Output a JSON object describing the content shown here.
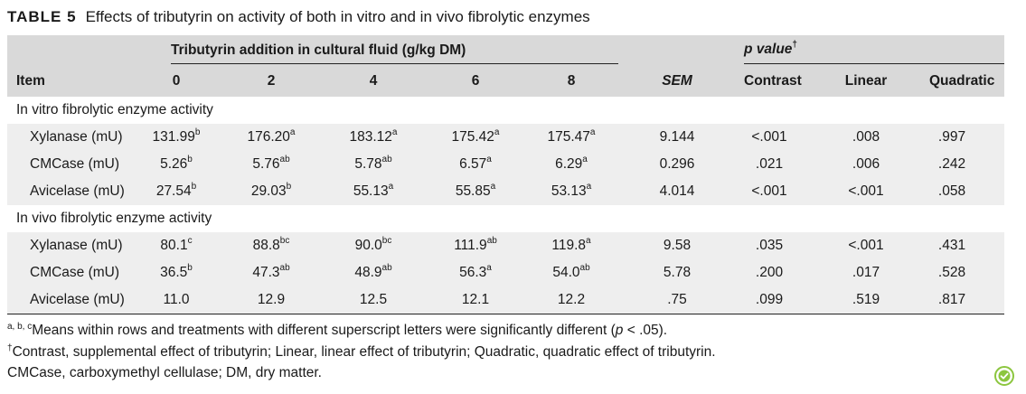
{
  "caption": {
    "label": "TABLE 5",
    "text": "Effects of tributyrin on activity of both in vitro and in vivo fibrolytic enzymes"
  },
  "header": {
    "group_label": "Tributyrin addition in cultural fluid (g/kg DM)",
    "pvalue_label": "p value",
    "pvalue_mark": "†",
    "item": "Item",
    "levels": [
      "0",
      "2",
      "4",
      "6",
      "8"
    ],
    "sem": "SEM",
    "contrast": "Contrast",
    "linear": "Linear",
    "quadratic": "Quadratic"
  },
  "sections": [
    {
      "title": "In vitro fibrolytic enzyme activity",
      "rows": [
        {
          "item": "Xylanase (mU)",
          "values": [
            "131.99",
            "176.20",
            "183.12",
            "175.42",
            "175.47"
          ],
          "sups": [
            "b",
            "a",
            "a",
            "a",
            "a"
          ],
          "sem": "9.144",
          "contrast": "<.001",
          "linear": ".008",
          "quadratic": ".997"
        },
        {
          "item": "CMCase (mU)",
          "values": [
            "5.26",
            "5.76",
            "5.78",
            "6.57",
            "6.29"
          ],
          "sups": [
            "b",
            "ab",
            "ab",
            "a",
            "a"
          ],
          "sem": "0.296",
          "contrast": ".021",
          "linear": ".006",
          "quadratic": ".242"
        },
        {
          "item": "Avicelase (mU)",
          "values": [
            "27.54",
            "29.03",
            "55.13",
            "55.85",
            "53.13"
          ],
          "sups": [
            "b",
            "b",
            "a",
            "a",
            "a"
          ],
          "sem": "4.014",
          "contrast": "<.001",
          "linear": "<.001",
          "quadratic": ".058"
        }
      ]
    },
    {
      "title": "In vivo fibrolytic enzyme activity",
      "rows": [
        {
          "item": "Xylanase (mU)",
          "values": [
            "80.1",
            "88.8",
            "90.0",
            "111.9",
            "119.8"
          ],
          "sups": [
            "c",
            "bc",
            "bc",
            "ab",
            "a"
          ],
          "sem": "9.58",
          "contrast": ".035",
          "linear": "<.001",
          "quadratic": ".431"
        },
        {
          "item": "CMCase (mU)",
          "values": [
            "36.5",
            "47.3",
            "48.9",
            "56.3",
            "54.0"
          ],
          "sups": [
            "b",
            "ab",
            "ab",
            "a",
            "ab"
          ],
          "sem": "5.78",
          "contrast": ".200",
          "linear": ".017",
          "quadratic": ".528"
        },
        {
          "item": "Avicelase (mU)",
          "values": [
            "11.0",
            "12.9",
            "12.5",
            "12.1",
            "12.2"
          ],
          "sups": [
            "",
            "",
            "",
            "",
            ""
          ],
          "sem": ".75",
          "contrast": ".099",
          "linear": ".519",
          "quadratic": ".817"
        }
      ]
    }
  ],
  "footnotes": {
    "fn1_mark": "a, b, c",
    "fn1_text_a": "Means within rows and treatments with different superscript letters were significantly different (",
    "fn1_p": "p",
    "fn1_text_b": " < .05).",
    "fn2_mark": "†",
    "fn2_text": "Contrast, supplemental effect of tributyrin; Linear, linear effect of tributyrin; Quadratic, quadratic effect of tributyrin.",
    "fn3_text": "CMCase, carboxymethyl cellulase; DM, dry matter."
  },
  "badge": {
    "icon": "crossmark-icon",
    "color": "#8cc63f"
  }
}
